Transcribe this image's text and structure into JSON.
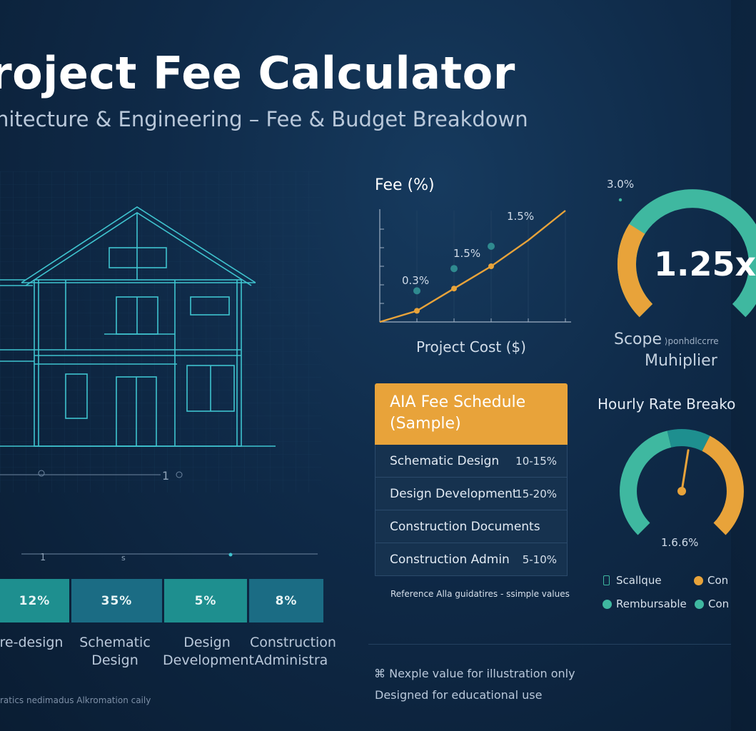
{
  "header": {
    "title": "roject Fee Calculator",
    "subtitle": "hitecture & Engineering – Fee & Budget Breakdown"
  },
  "blueprint": {
    "scale_label_left": "0",
    "scale_label_right": "1",
    "timeline_label": "s",
    "timeline_tick": "1"
  },
  "phase_bars": {
    "items": [
      {
        "value": "12%",
        "label_line1": "re-design",
        "label_line2": ""
      },
      {
        "value": "35%",
        "label_line1": "Schematic",
        "label_line2": "Design"
      },
      {
        "value": "5%",
        "label_line1": "Design",
        "label_line2": "Development"
      },
      {
        "value": "8%",
        "label_line1": "Construction",
        "label_line2": "Administra"
      }
    ],
    "footnote": "ratics nedimadus Alkromation caily"
  },
  "chart_data": [
    {
      "type": "line",
      "title": "Fee (%)",
      "xlabel": "Project Cost ($)",
      "ylabel": "",
      "series": [
        {
          "x": [
            0,
            1,
            2,
            3,
            4,
            5
          ],
          "values": [
            0.0,
            0.3,
            0.9,
            1.5,
            2.2,
            3.0
          ]
        }
      ],
      "annotations": [
        {
          "label": "0.3%"
        },
        {
          "label": "1.5%"
        },
        {
          "label": "1.5%"
        }
      ],
      "grid": true
    },
    {
      "type": "gauge",
      "title": "Scope",
      "title_suffix": "ponhdlccrre",
      "title_line2": "Muhiplier",
      "value_label": "1.25x",
      "top_label": "3.0%",
      "fill_fraction": 0.62
    },
    {
      "type": "gauge",
      "title": "Hourly Rate Breako",
      "value_label": "1.6.6%",
      "needle_fraction": 0.82,
      "legend": [
        {
          "label": "Scallque",
          "color": "#3fb8a0",
          "marker": "battery"
        },
        {
          "label": "Con",
          "color": "#e8a33a",
          "marker": "dot"
        },
        {
          "label": "Rembursable",
          "color": "#3fb8a0",
          "marker": "dot"
        },
        {
          "label": "Con",
          "color": "#3fb8a0",
          "marker": "dot"
        }
      ]
    }
  ],
  "aia_table": {
    "header_line1": "AIA Fee Schedule",
    "header_line2": "(Sample)",
    "rows": [
      {
        "name": "Schematic Design",
        "pct": "10-15%"
      },
      {
        "name": "Design Development",
        "pct": "15-20%"
      },
      {
        "name": "Construction Documents",
        "pct": ""
      },
      {
        "name": "Construction Admin",
        "pct": "5-10%"
      }
    ],
    "reference": "Reference Alla guidatires - ssimple values"
  },
  "footer": {
    "note": "Nexple value for illustration only",
    "note2": "Designed for educational use"
  },
  "colors": {
    "accent_orange": "#e8a33a",
    "accent_teal": "#3fb8a0",
    "line_cyan": "#3fc4cf",
    "background": "#0f2a48"
  }
}
